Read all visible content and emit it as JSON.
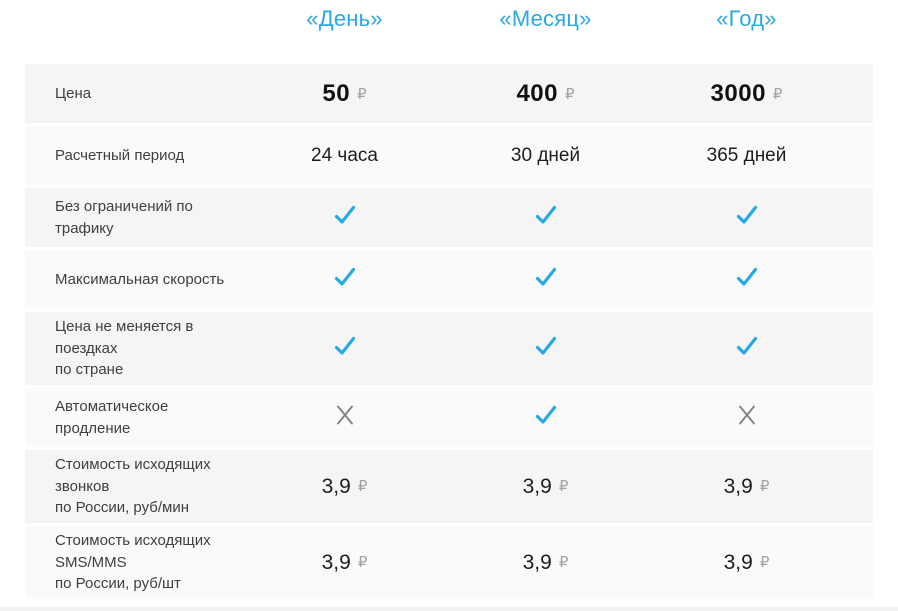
{
  "theme": {
    "accent": "#29a9e2",
    "muted_icon": "#7f7f7f",
    "row_dark": "#f5f5f5",
    "row_light": "#fafafa",
    "currency_color": "#a3a3a3"
  },
  "header": {
    "columns": [
      "«День»",
      "«Месяц»",
      "«Год»"
    ]
  },
  "table": {
    "rows": [
      {
        "label": "Цена",
        "type": "price",
        "bold": true,
        "values": [
          "50",
          "400",
          "3000"
        ],
        "unit": "₽"
      },
      {
        "label": "Расчетный период",
        "type": "text",
        "values": [
          "24 часа",
          "30 дней",
          "365 дней"
        ]
      },
      {
        "label": "Без ограничений по трафику",
        "type": "bool",
        "values": [
          "check",
          "check",
          "check"
        ]
      },
      {
        "label": "Максимальная скорость",
        "type": "bool",
        "values": [
          "check",
          "check",
          "check"
        ]
      },
      {
        "label": "Цена не меняется в поездках\nпо стране",
        "type": "bool",
        "values": [
          "check",
          "check",
          "check"
        ]
      },
      {
        "label": "Автоматическое продление",
        "type": "bool",
        "values": [
          "cross",
          "check",
          "cross"
        ]
      },
      {
        "label": "Стоимость исходящих звонков\nпо России, руб/мин",
        "type": "price",
        "bold": false,
        "values": [
          "3,9",
          "3,9",
          "3,9"
        ],
        "unit": "₽"
      },
      {
        "label": "Стоимость исходящих SMS/MMS\nпо России, руб/шт",
        "type": "price",
        "bold": false,
        "values": [
          "3,9",
          "3,9",
          "3,9"
        ],
        "unit": "₽"
      }
    ]
  }
}
